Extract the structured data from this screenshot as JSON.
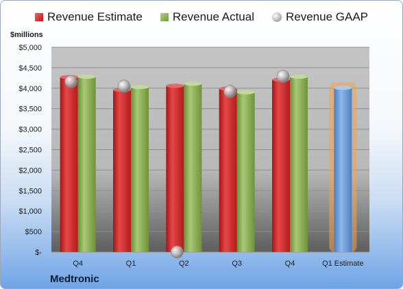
{
  "chart_data": {
    "type": "bar",
    "title": "",
    "unit_label": "$millions",
    "company": "Medtronic",
    "categories": [
      "Q4",
      "Q1",
      "Q2",
      "Q3",
      "Q4",
      "Q1 Estimate"
    ],
    "y_ticks": [
      "$5,000",
      "$4,500",
      "$4,000",
      "$3,500",
      "$3,000",
      "$2,500",
      "$2,000",
      "$1,500",
      "$1,000",
      "$500",
      "$-"
    ],
    "ylim": [
      0,
      5000
    ],
    "legend_position": "top",
    "grid": true,
    "series": [
      {
        "name": "Revenue Estimate",
        "kind": "bar",
        "color": "#d42a2a",
        "values": [
          4270,
          3960,
          4060,
          3990,
          4210,
          null
        ]
      },
      {
        "name": "Revenue Actual",
        "kind": "bar",
        "color": "#8db056",
        "values": [
          4280,
          4030,
          4110,
          3900,
          4280,
          null
        ]
      },
      {
        "name": "Revenue GAAP",
        "kind": "marker",
        "color": "#a8a8a8",
        "values": [
          4160,
          4050,
          0,
          3920,
          4290,
          null
        ]
      },
      {
        "name": "",
        "kind": "bar",
        "color": "#6f9fd8",
        "values": [
          null,
          null,
          null,
          null,
          null,
          4010
        ]
      }
    ]
  }
}
